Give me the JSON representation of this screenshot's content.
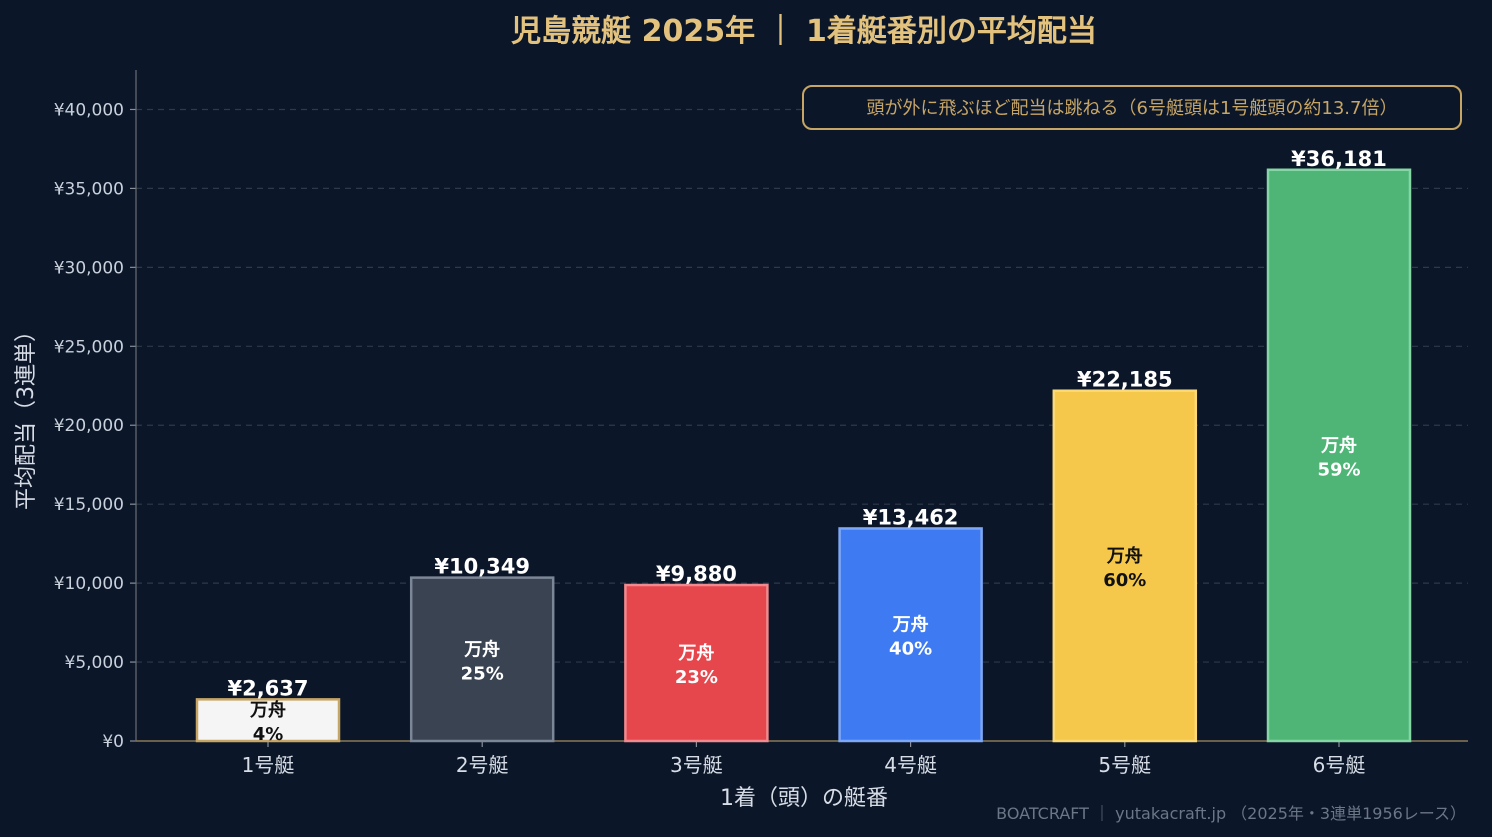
{
  "chart_data": {
    "type": "bar",
    "title": "児島競艇 2025年 ｜ 1着艇番別の平均配当",
    "annotation": "頭が外に飛ぶほど配当は跳ねる（6号艇頭は1号艇頭の約13.7倍）",
    "xlabel": "1着（頭）の艇番",
    "ylabel": "平均配当（3連単）",
    "footer": "BOATCRAFT ｜ yutakacraft.jp （2025年・3連単1956レース）",
    "inner_caption": "万舟",
    "categories": [
      "1号艇",
      "2号艇",
      "3号艇",
      "4号艇",
      "5号艇",
      "6号艇"
    ],
    "values": [
      2637,
      10349,
      9880,
      13462,
      22185,
      36181
    ],
    "value_labels": [
      "¥2,637",
      "¥10,349",
      "¥9,880",
      "¥13,462",
      "¥22,185",
      "¥36,181"
    ],
    "manshu_rates": [
      "4%",
      "25%",
      "23%",
      "40%",
      "60%",
      "59%"
    ],
    "ylim": [
      0,
      42500
    ],
    "yticks": [
      0,
      5000,
      10000,
      15000,
      20000,
      25000,
      30000,
      35000,
      40000
    ],
    "ytick_labels": [
      "¥0",
      "¥5,000",
      "¥10,000",
      "¥15,000",
      "¥20,000",
      "¥25,000",
      "¥30,000",
      "¥35,000",
      "¥40,000"
    ],
    "grid": true,
    "bar_colors": [
      "#f5f5f5",
      "#3a4352",
      "#e5474d",
      "#3e7bf3",
      "#f5c84c",
      "#4fb577"
    ],
    "bar_edge_colors": [
      "#c7a565",
      "#7b8696",
      "#f08a8e",
      "#7ea8f7",
      "#fbd977",
      "#86d6a5"
    ],
    "inner_text_colors": [
      "#111111",
      "#ffffff",
      "#ffffff",
      "#ffffff",
      "#111111",
      "#ffffff"
    ],
    "colors": {
      "background": "#0b1628",
      "title": "#e3c27e",
      "value_label": "#ffffff",
      "annotation_border": "#c7a565",
      "annotation_text": "#c7a565",
      "footer": "#6b7687"
    }
  }
}
